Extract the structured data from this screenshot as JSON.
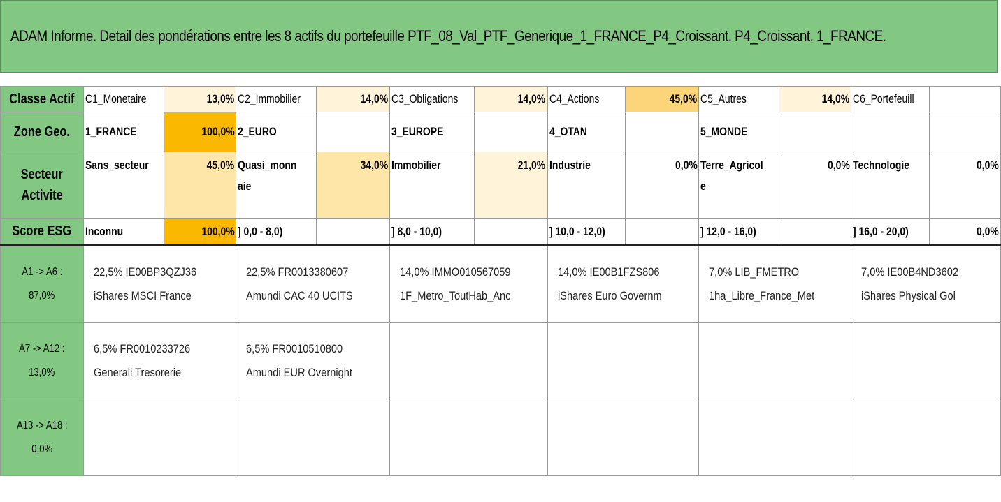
{
  "title": "ADAM Informe. Detail des pondérations entre les 8 actifs du portefeuille PTF_08_Val_PTF_Generique_1_FRANCE_P4_Croissant. P4_Croissant. 1_FRANCE.",
  "rows": {
    "classe": {
      "label": "Classe Actif",
      "cells": [
        {
          "name": "C1_Monetaire",
          "value": "13,0%"
        },
        {
          "name": "C2_Immobilier",
          "value": "14,0%"
        },
        {
          "name": "C3_Obligations",
          "value": "14,0%"
        },
        {
          "name": "C4_Actions",
          "value": "45,0%"
        },
        {
          "name": "C5_Autres",
          "value": "14,0%"
        },
        {
          "name": "C6_Portefeuill",
          "value": ""
        }
      ]
    },
    "zone": {
      "label": "Zone Geo.",
      "cells": [
        {
          "name": "1_FRANCE",
          "value": "100,0%"
        },
        {
          "name": "2_EURO",
          "value": ""
        },
        {
          "name": "3_EUROPE",
          "value": ""
        },
        {
          "name": "4_OTAN",
          "value": ""
        },
        {
          "name": "5_MONDE",
          "value": ""
        },
        {
          "name": "",
          "value": ""
        }
      ]
    },
    "secteur": {
      "label_line1": "Secteur",
      "label_line2": "Activite",
      "cells": [
        {
          "name_line1": "Sans_secteur",
          "name_line2": "",
          "value": "45,0%"
        },
        {
          "name_line1": "Quasi_monn",
          "name_line2": "aie",
          "value": "34,0%"
        },
        {
          "name_line1": "Immobilier",
          "name_line2": "",
          "value": "21,0%"
        },
        {
          "name_line1": "Industrie",
          "name_line2": "",
          "value": "0,0%"
        },
        {
          "name_line1": "Terre_Agricol",
          "name_line2": "e",
          "value": "0,0%"
        },
        {
          "name_line1": "Technologie",
          "name_line2": "",
          "value": "0,0%"
        }
      ]
    },
    "esg": {
      "label": "Score ESG",
      "cells": [
        {
          "name": "Inconnu",
          "value": "100,0%"
        },
        {
          "name": "] 0,0 - 8,0)",
          "value": ""
        },
        {
          "name": "] 8,0 - 10,0)",
          "value": ""
        },
        {
          "name": "] 10,0 - 12,0)",
          "value": ""
        },
        {
          "name": "] 12,0 - 16,0)",
          "value": ""
        },
        {
          "name": "] 16,0 - 20,0)",
          "value": "0,0%"
        }
      ]
    }
  },
  "asset_groups": [
    {
      "range": "A1 -> A6 :",
      "total": "87,0%",
      "assets": [
        {
          "line1": "22,5% IE00BP3QZJ36",
          "line2": "iShares MSCI France"
        },
        {
          "line1": "22,5% FR0013380607",
          "line2": "Amundi CAC 40 UCITS"
        },
        {
          "line1": "14,0% IMMO010567059",
          "line2": "1F_Metro_ToutHab_Anc"
        },
        {
          "line1": "14,0% IE00B1FZS806",
          "line2": "iShares Euro Governm"
        },
        {
          "line1": "7,0% LIB_FMETRO",
          "line2": "1ha_Libre_France_Met"
        },
        {
          "line1": "7,0% IE00B4ND3602",
          "line2": "iShares Physical Gol"
        }
      ]
    },
    {
      "range": "A7 -> A12 :",
      "total": "13,0%",
      "assets": [
        {
          "line1": "6,5% FR0010233726",
          "line2": "Generali Tresorerie"
        },
        {
          "line1": "6,5% FR0010510800",
          "line2": "Amundi EUR Overnight"
        },
        {
          "line1": "",
          "line2": ""
        },
        {
          "line1": "",
          "line2": ""
        },
        {
          "line1": "",
          "line2": ""
        },
        {
          "line1": "",
          "line2": ""
        }
      ]
    },
    {
      "range": "A13 -> A18 :",
      "total": "0,0%",
      "assets": [
        {
          "line1": "",
          "line2": ""
        },
        {
          "line1": "",
          "line2": ""
        },
        {
          "line1": "",
          "line2": ""
        },
        {
          "line1": "",
          "line2": ""
        },
        {
          "line1": "",
          "line2": ""
        },
        {
          "line1": "",
          "line2": ""
        }
      ]
    }
  ],
  "colors": {
    "header_green": "#82c782",
    "light": "#fff3da",
    "mid": "#fde6a8",
    "actions_45": "#fcd57a",
    "full_100": "#fbb800"
  }
}
